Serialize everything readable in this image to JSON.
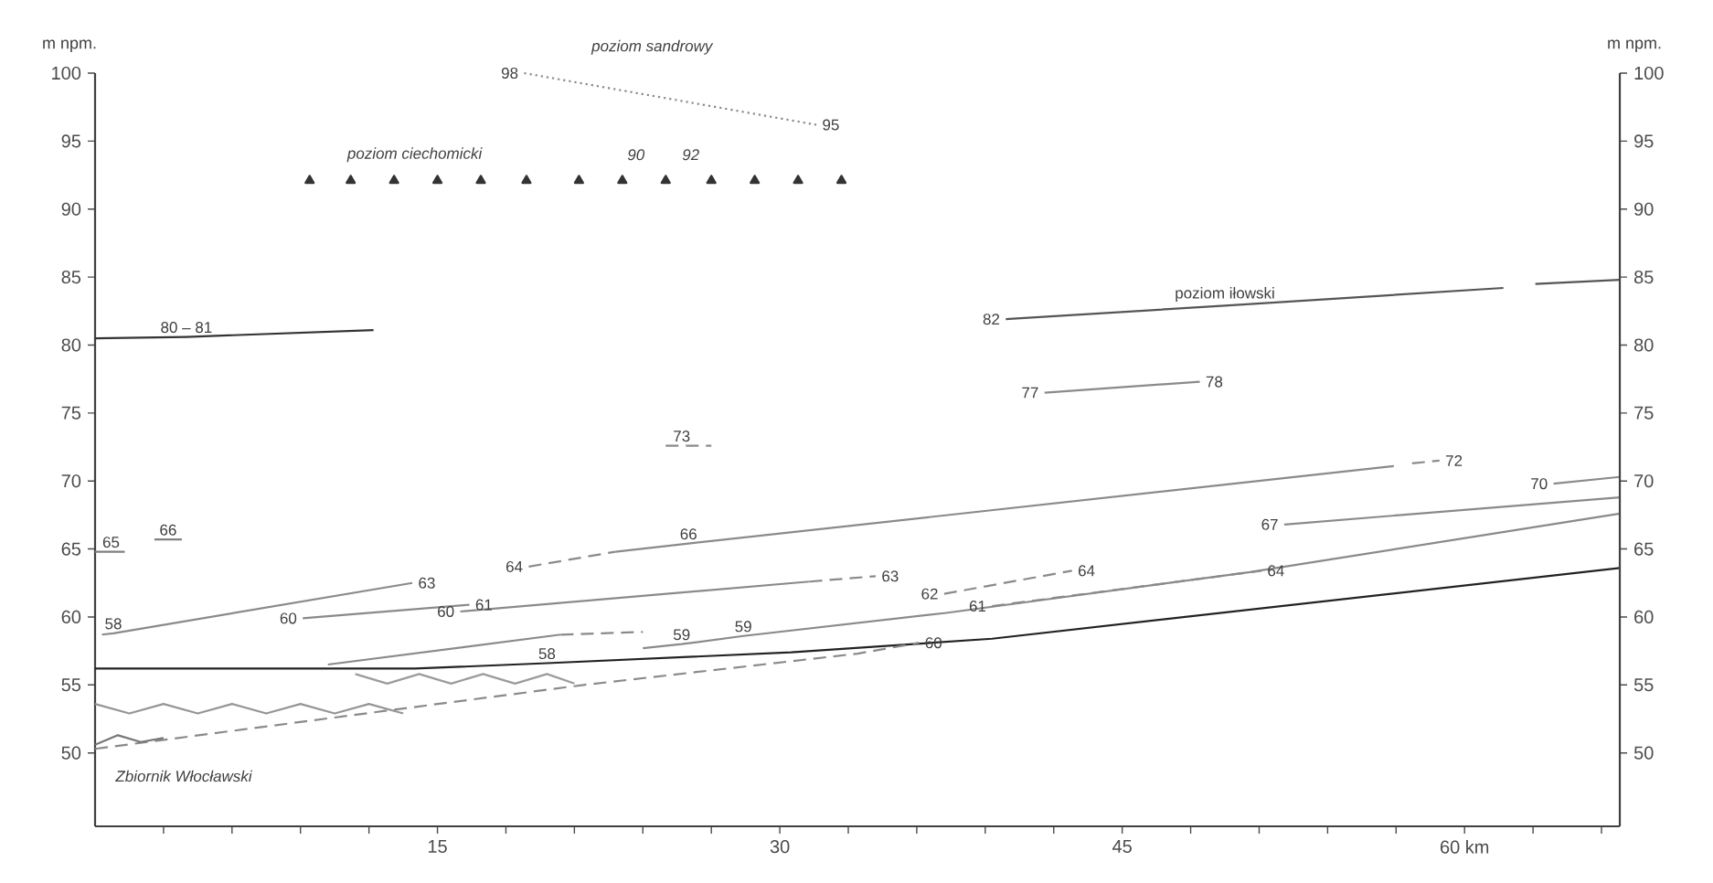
{
  "chart_data": {
    "type": "line",
    "ylabel": "m npm.",
    "y2label": "m npm.",
    "xlim": [
      0,
      66.8
    ],
    "ylim": [
      44.6,
      100
    ],
    "y2lim": [
      44.6,
      100
    ],
    "xticks": [
      {
        "value": 3,
        "label": null
      },
      {
        "value": 6,
        "label": null
      },
      {
        "value": 9,
        "label": null
      },
      {
        "value": 12,
        "label": null
      },
      15,
      {
        "value": 18,
        "label": null
      },
      {
        "value": 21,
        "label": null
      },
      {
        "value": 24,
        "label": null
      },
      {
        "value": 27,
        "label": null
      },
      30,
      {
        "value": 33,
        "label": null
      },
      {
        "value": 36,
        "label": null
      },
      {
        "value": 39,
        "label": null
      },
      {
        "value": 42,
        "label": null
      },
      45,
      {
        "value": 48,
        "label": null
      },
      {
        "value": 51,
        "label": null
      },
      {
        "value": 54,
        "label": null
      },
      {
        "value": 57,
        "label": null
      },
      {
        "value": 60,
        "label": "60 km"
      },
      {
        "value": 63,
        "label": null
      },
      {
        "value": 66,
        "label": null
      }
    ],
    "yticks": [
      50,
      55,
      60,
      65,
      70,
      75,
      80,
      85,
      90,
      95,
      100
    ],
    "y2ticks": [
      50,
      55,
      60,
      65,
      70,
      75,
      80,
      85,
      90,
      95,
      100
    ],
    "series": [
      {
        "color": "#8a8a8a",
        "line_style": "dotted",
        "x": [
          18.8,
          31.6
        ],
        "values": [
          100,
          96.2
        ]
      },
      {
        "type": "scatter",
        "marker": "triangle",
        "color": "#333333",
        "x": [
          9.4,
          11.2,
          13.1,
          15.0,
          16.9,
          18.9,
          21.2,
          23.1,
          25.0,
          27.0,
          28.9,
          30.8,
          32.7
        ],
        "values": [
          92.1,
          92.1,
          92.1,
          92.1,
          92.1,
          92.1,
          92.1,
          92.1,
          92.1,
          92.1,
          92.1,
          92.1,
          92.1
        ]
      },
      {
        "color": "#333333",
        "line_style": "solid",
        "x": [
          0,
          4.0,
          12.2
        ],
        "values": [
          80.5,
          80.6,
          81.1
        ]
      },
      {
        "color": "#555555",
        "line_style": "solid",
        "x": [
          39.9,
          49.5,
          61.7,
          62.4,
          63.1,
          66.8
        ],
        "values": [
          81.9,
          82.9,
          84.2,
          null,
          84.5,
          84.8
        ]
      },
      {
        "color": "#8a8a8a",
        "line_style": "solid",
        "x": [
          41.6,
          48.4
        ],
        "values": [
          76.5,
          77.3
        ]
      },
      {
        "color": "#8a8a8a",
        "line_style": "dashed",
        "x": [
          25.0,
          25.7,
          27.0
        ],
        "values": [
          72.6,
          72.6,
          72.6
        ]
      },
      {
        "color": "#808080",
        "line_style": "solid",
        "x": [
          0,
          0.7,
          1.3
        ],
        "values": [
          64.8,
          64.8,
          64.8
        ]
      },
      {
        "color": "#7d7d7d",
        "line_style": "solid",
        "x": [
          2.6,
          3.2,
          3.8
        ],
        "values": [
          65.7,
          65.7,
          65.7
        ]
      },
      {
        "color": "#8a8a8a",
        "line_style": "dashed",
        "x": [
          19.0,
          22.8
        ],
        "values": [
          63.7,
          64.8
        ]
      },
      {
        "color": "#8a8a8a",
        "line_style": "solid",
        "x": [
          22.8,
          26.0,
          56.9
        ],
        "values": [
          64.8,
          65.4,
          71.1
        ]
      },
      {
        "color": "#8a8a8a",
        "line_style": "dashed",
        "x": [
          57.7,
          58.9
        ],
        "values": [
          71.3,
          71.5
        ]
      },
      {
        "color": "#8a8a8a",
        "line_style": "solid",
        "x": [
          0.3,
          0.8,
          13.9
        ],
        "values": [
          58.7,
          58.8,
          62.5
        ]
      },
      {
        "color": "#8a8a8a",
        "line_style": "solid",
        "x": [
          9.1,
          16.4
        ],
        "values": [
          59.9,
          60.9
        ]
      },
      {
        "color": "#8a8a8a",
        "line_style": "solid",
        "x": [
          16.0,
          31.3
        ],
        "values": [
          60.4,
          62.6
        ]
      },
      {
        "color": "#8a8a8a",
        "line_style": "dashed",
        "x": [
          31.3,
          34.2
        ],
        "values": [
          62.6,
          63.0
        ]
      },
      {
        "color": "#8a8a8a",
        "line_style": "dashed",
        "x": [
          37.2,
          42.8
        ],
        "values": [
          61.7,
          63.4
        ]
      },
      {
        "color": "#8a8a8a",
        "line_style": "solid",
        "x": [
          10.2,
          20.4
        ],
        "values": [
          56.5,
          58.7
        ]
      },
      {
        "color": "#8a8a8a",
        "line_style": "dashed",
        "x": [
          20.4,
          24.0
        ],
        "values": [
          58.7,
          58.9
        ]
      },
      {
        "color": "#8a8a8a",
        "line_style": "solid",
        "x": [
          24.0,
          25.7,
          28.4,
          37.3,
          50.6,
          66.8
        ],
        "values": [
          57.7,
          58.0,
          58.6,
          60.3,
          63.3,
          67.6
        ]
      },
      {
        "color": "#8a8a8a",
        "line_style": "dashed",
        "x": [
          39.3,
          51.1
        ],
        "values": [
          60.8,
          63.4
        ]
      },
      {
        "color": "#8a8a8a",
        "line_style": "solid",
        "x": [
          52.1,
          66.8
        ],
        "values": [
          66.8,
          68.8
        ]
      },
      {
        "color": "#8a8a8a",
        "line_style": "solid",
        "x": [
          63.9,
          66.8
        ],
        "values": [
          69.8,
          70.3
        ]
      },
      {
        "color": "#222222",
        "line_style": "solid",
        "x": [
          0,
          14.0,
          19.8,
          30.5,
          39.3,
          66.8
        ],
        "values": [
          56.2,
          56.2,
          56.6,
          57.4,
          58.4,
          63.6
        ]
      },
      {
        "color": "#8a8a8a",
        "line_style": "dashed",
        "x": [
          0,
          21.4,
          33.4,
          36.1
        ],
        "values": [
          50.3,
          55.0,
          57.3,
          58.1
        ]
      },
      {
        "color": "#959595",
        "line_style": "solid",
        "x": [
          0,
          1.5,
          3,
          4.5,
          6,
          7.5,
          9,
          10.5,
          12,
          13.5
        ],
        "values": [
          53.6,
          52.9,
          53.6,
          52.9,
          53.6,
          52.9,
          53.6,
          52.9,
          53.6,
          52.9
        ]
      },
      {
        "color": "#9b9b9b",
        "line_style": "solid",
        "x": [
          11.4,
          12.8,
          14.2,
          15.6,
          17.0,
          18.4,
          19.8,
          21.0
        ],
        "values": [
          55.8,
          55.1,
          55.8,
          55.1,
          55.8,
          55.1,
          55.8,
          55.1
        ]
      },
      {
        "color": "#777777",
        "line_style": "solid",
        "x": [
          0,
          1,
          2,
          3
        ],
        "values": [
          50.6,
          51.3,
          50.8,
          51.1
        ]
      }
    ],
    "annotations": [
      "poziom sandrowy",
      {
        "text": "98",
        "x": 18.8,
        "y": 100
      },
      {
        "text": "95",
        "x": 31.6,
        "y": 96.2
      },
      "poziom ciechomicki",
      "90",
      "92",
      {
        "text": "80 – 81",
        "x": 4.0,
        "y": 80.6
      },
      {
        "text": "poziom iłowski",
        "x": 49.5,
        "y": 82.9
      },
      {
        "text": "82",
        "x": 39.9,
        "y": 81.9
      },
      {
        "text": "77",
        "x": 41.6,
        "y": 76.5
      },
      {
        "text": "78",
        "x": 48.4,
        "y": 77.3
      },
      {
        "text": "73",
        "x": 25.7,
        "y": 72.6
      },
      {
        "text": "65",
        "x": 0.7,
        "y": 64.8
      },
      {
        "text": "66",
        "x": 3.2,
        "y": 65.7
      },
      {
        "text": "72",
        "x": 58.9,
        "y": 71.5
      },
      {
        "text": "70",
        "x": 63.9,
        "y": 69.8
      },
      {
        "text": "67",
        "x": 52.1,
        "y": 66.8
      },
      {
        "text": "66",
        "x": 26.0,
        "y": 65.4
      },
      {
        "text": "64",
        "x": 19.0,
        "y": 63.7
      },
      {
        "text": "63",
        "x": 13.9,
        "y": 62.5
      },
      {
        "text": "61",
        "x": 16.4,
        "y": 60.9
      },
      {
        "text": "60",
        "x": 9.1,
        "y": 59.9
      },
      {
        "text": "60",
        "x": 16.0,
        "y": 60.4
      },
      {
        "text": "58",
        "x": 0.8,
        "y": 58.8
      },
      {
        "text": "63",
        "x": 34.2,
        "y": 63.0
      },
      {
        "text": "62",
        "x": 37.2,
        "y": 61.7
      },
      {
        "text": "64",
        "x": 42.8,
        "y": 63.4
      },
      {
        "text": "64",
        "x": 51.1,
        "y": 63.4
      },
      {
        "text": "60",
        "x": 36.1,
        "y": 58.1
      },
      {
        "text": "61",
        "x": 39.3,
        "y": 60.8
      },
      {
        "text": "58",
        "x": 19.8,
        "y": 56.6
      },
      {
        "text": "59",
        "x": 25.7,
        "y": 58.0
      },
      {
        "text": "59",
        "x": 28.4,
        "y": 58.6
      },
      "Zbiornik Włocławski"
    ]
  }
}
